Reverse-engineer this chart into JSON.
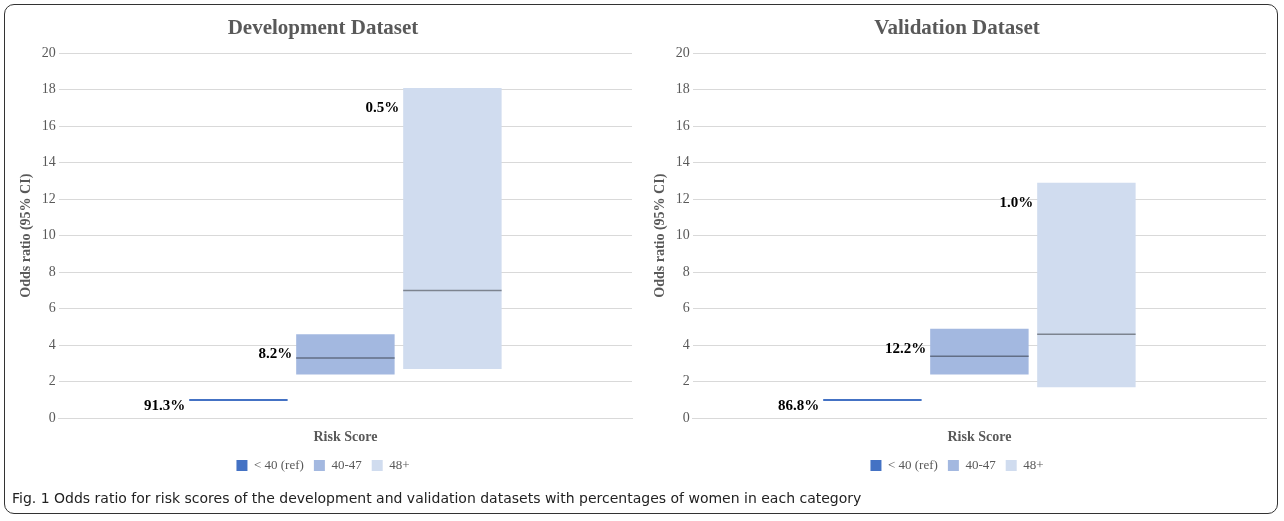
{
  "chart_data": [
    {
      "type": "box",
      "title": "Development Dataset",
      "ylabel": "Odds ratio (95% CI)",
      "categories": [
        "Risk Score"
      ],
      "ylim": [
        0,
        20
      ],
      "yticks": [
        0,
        2,
        4,
        6,
        8,
        10,
        12,
        14,
        16,
        18,
        20
      ],
      "grid": "y",
      "legend": "bottom",
      "series": [
        {
          "name": "< 40 (ref)",
          "color": "#4472c4",
          "boxes": [
            {
              "low": 1,
              "q1": 1,
              "median": 1,
              "q3": 1,
              "high": 1
            }
          ],
          "value_labels": [
            "91.3%"
          ]
        },
        {
          "name": "40-47",
          "color": "#a3b8e0",
          "boxes": [
            {
              "low": 2.4,
              "q1": 2.4,
              "median": 3.3,
              "q3": 4.6,
              "high": 4.6
            }
          ],
          "value_labels": [
            "8.2%"
          ]
        },
        {
          "name": "48+",
          "color": "#d0dcef",
          "boxes": [
            {
              "low": 2.7,
              "q1": 2.7,
              "median": 7,
              "q3": 18.1,
              "high": 18.1
            }
          ],
          "value_labels": [
            "0.5%"
          ]
        }
      ],
      "annotations": [
        "Fig. 1  Odds ratio for risk scores of the development and validation datasets with percentages of women in each category"
      ]
    },
    {
      "type": "box",
      "title": "Validation Dataset",
      "ylabel": "Odds ratio (95% CI)",
      "categories": [
        "Risk Score"
      ],
      "ylim": [
        0,
        20
      ],
      "yticks": [
        0,
        2,
        4,
        6,
        8,
        10,
        12,
        14,
        16,
        18,
        20
      ],
      "grid": "y",
      "legend": "bottom",
      "series": [
        {
          "name": "< 40 (ref)",
          "color": "#4472c4",
          "boxes": [
            {
              "low": 1,
              "q1": 1,
              "median": 1,
              "q3": 1,
              "high": 1
            }
          ],
          "value_labels": [
            "86.8%"
          ]
        },
        {
          "name": "40-47",
          "color": "#a3b8e0",
          "boxes": [
            {
              "low": 2.4,
              "q1": 2.4,
              "median": 3.4,
              "q3": 4.9,
              "high": 4.9
            }
          ],
          "value_labels": [
            "12.2%"
          ]
        },
        {
          "name": "48+",
          "color": "#d0dcef",
          "boxes": [
            {
              "low": 1.7,
              "q1": 1.7,
              "median": 4.6,
              "q3": 12.9,
              "high": 12.9
            }
          ],
          "value_labels": [
            "1.0%"
          ]
        }
      ]
    }
  ]
}
